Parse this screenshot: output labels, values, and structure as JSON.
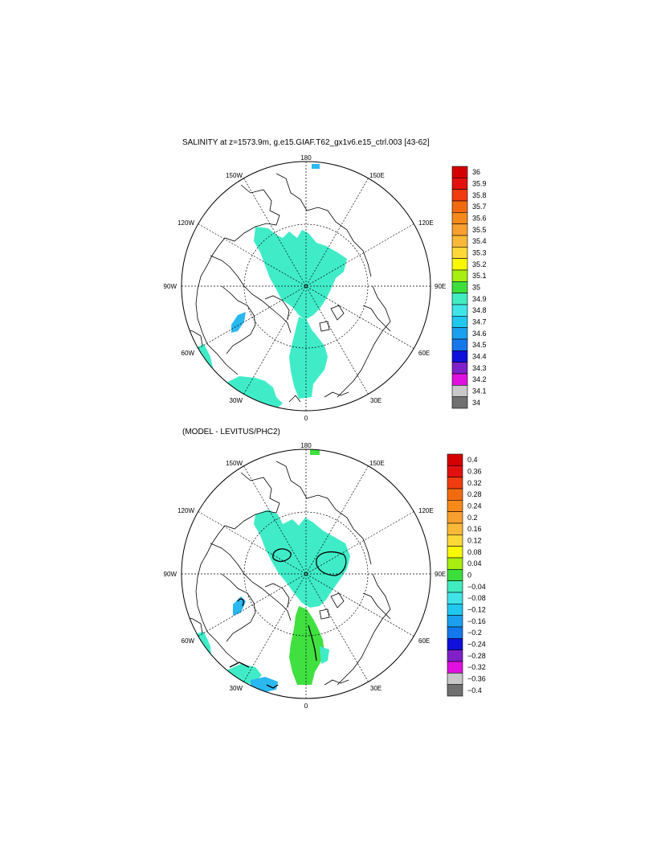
{
  "panels": [
    {
      "title": "SALINITY at z=1573.9m, g.e15.GIAF.T62_gx1v6.e15_ctrl.003 [43-62]",
      "longitude_labels": [
        "180",
        "150E",
        "120E",
        "90E",
        "60E",
        "30E",
        "0",
        "30W",
        "60W",
        "90W",
        "120W",
        "150W"
      ],
      "colorbar": {
        "labels": [
          "36",
          "35.9",
          "35.8",
          "35.7",
          "35.6",
          "35.5",
          "35.4",
          "35.3",
          "35.2",
          "35.1",
          "35",
          "34.9",
          "34.8",
          "34.7",
          "34.6",
          "34.5",
          "34.4",
          "34.3",
          "34.2",
          "34.1",
          "34"
        ],
        "colors": [
          "#d40000",
          "#e41010",
          "#f03c10",
          "#f26a10",
          "#f58a1a",
          "#f7a030",
          "#f9b838",
          "#fdd838",
          "#f8f800",
          "#a8ee10",
          "#3cde3c",
          "#40ecc0",
          "#40e4e8",
          "#20c8f0",
          "#1aa0ee",
          "#1478ec",
          "#1010dc",
          "#8020c8",
          "#e010e0",
          "#c8c8c8",
          "#707070"
        ]
      }
    },
    {
      "title": "(MODEL - LEVITUS/PHC2)",
      "longitude_labels": [
        "180",
        "150E",
        "120E",
        "90E",
        "60E",
        "30E",
        "0",
        "30W",
        "60W",
        "90W",
        "120W",
        "150W"
      ],
      "colorbar": {
        "labels": [
          "0.4",
          "0.36",
          "0.32",
          "0.28",
          "0.24",
          "0.2",
          "0.16",
          "0.12",
          "0.08",
          "0.04",
          "0",
          "−0.04",
          "−0.08",
          "−0.12",
          "−0.16",
          "−0.2",
          "−0.24",
          "−0.28",
          "−0.32",
          "−0.36",
          "−0.4"
        ],
        "colors": [
          "#d40000",
          "#e41010",
          "#f03c10",
          "#f26a10",
          "#f58a1a",
          "#f7a030",
          "#f9b838",
          "#fdd838",
          "#f8f800",
          "#a8ee10",
          "#3cde3c",
          "#40ecc0",
          "#40e4e8",
          "#20c8f0",
          "#1aa0ee",
          "#1478ec",
          "#1010dc",
          "#8020c8",
          "#e010e0",
          "#c8c8c8",
          "#707070"
        ]
      }
    }
  ],
  "map_colors": {
    "salinity_fill": "#40ecc8",
    "salinity_light_blue": "#2ab8f0",
    "diff_cyan": "#40ecc8",
    "diff_green": "#40e040",
    "diff_light_blue": "#2ab8f0"
  }
}
